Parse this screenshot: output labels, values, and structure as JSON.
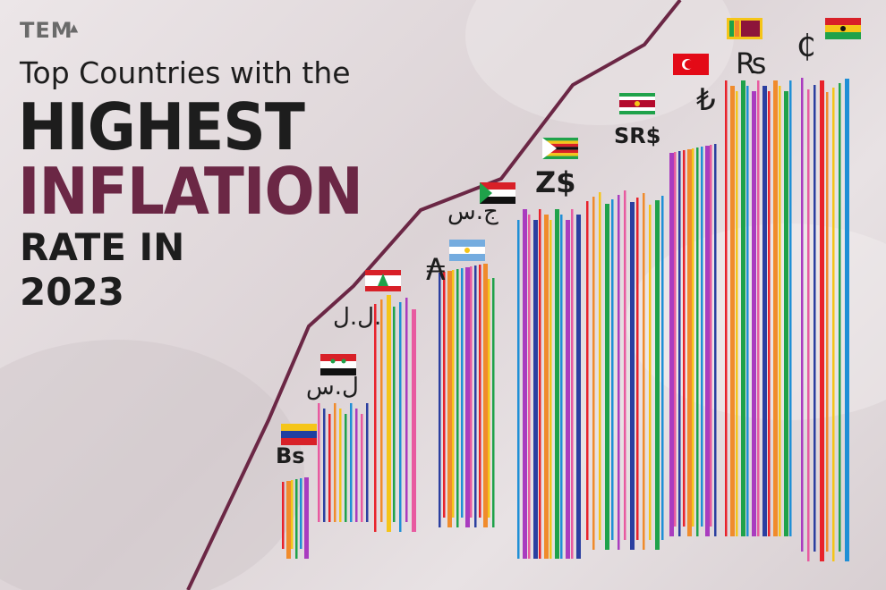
{
  "brand": {
    "logo_text": "TEM"
  },
  "title": {
    "line1": "Top Countries with the",
    "line2": "HIGHEST",
    "line3": "INFLATION",
    "line4": "RATE IN",
    "line5": "2023"
  },
  "colors": {
    "dark": "#1d1d1d",
    "maroon": "#6b2745",
    "bar_palette": [
      "#e8222b",
      "#f08b2c",
      "#f5c518",
      "#1fa24a",
      "#1f8fd6",
      "#a93cbf",
      "#e85aa0",
      "#2b3fa0"
    ]
  },
  "countries": [
    {
      "symbol": "Bs",
      "flag": "venezuela-flag"
    },
    {
      "symbol": "ل.س",
      "flag": "syria-flag"
    },
    {
      "symbol": "ل.ل.",
      "flag": "lebanon-flag"
    },
    {
      "symbol": "₳",
      "flag": "argentina-flag"
    },
    {
      "symbol": "ج.س",
      "flag": "sudan-flag"
    },
    {
      "symbol": "Z$",
      "flag": "zimbabwe-flag"
    },
    {
      "symbol": "SR$",
      "flag": "suriname-flag"
    },
    {
      "symbol": "₺",
      "flag": "turkey-flag"
    },
    {
      "symbol": "₨",
      "flag": "sri-lanka-flag"
    },
    {
      "symbol": "₵",
      "flag": "ghana-flag"
    }
  ]
}
